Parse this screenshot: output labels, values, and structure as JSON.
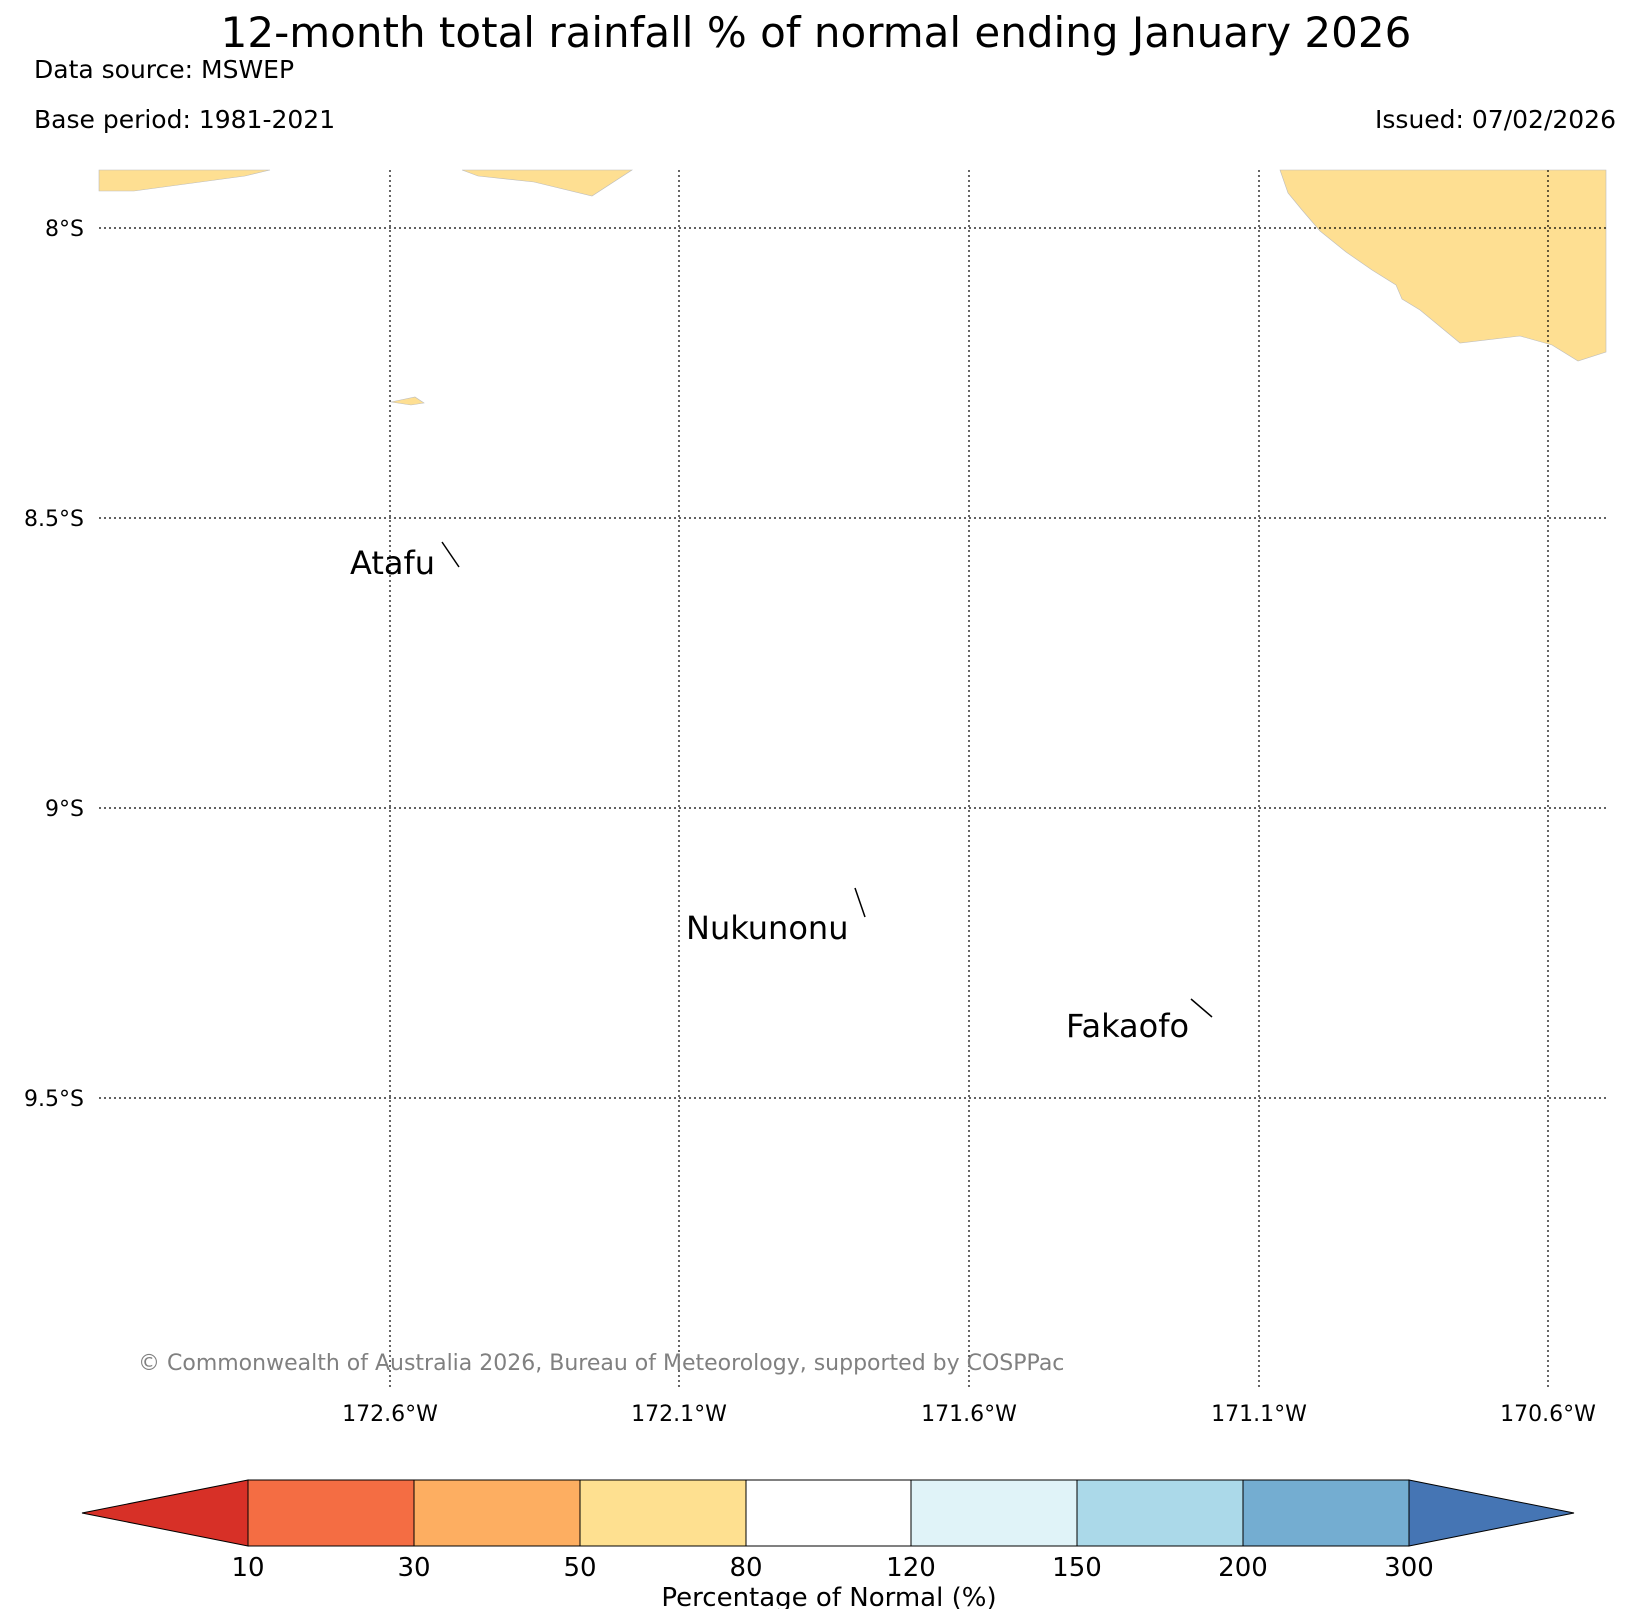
{
  "header": {
    "title": "12-month total rainfall % of normal ending January 2026",
    "data_source": "Data source: MSWEP",
    "base_period": "Base period: 1981-2021",
    "issued": "Issued: 07/02/2026"
  },
  "map": {
    "lat_labels": [
      "8°S",
      "8.5°S",
      "9°S",
      "9.5°S"
    ],
    "lon_labels": [
      "172.6°W",
      "172.1°W",
      "171.6°W",
      "171.1°W",
      "170.6°W"
    ],
    "places": [
      "Atafu",
      "Nukunonu",
      "Fakaofo"
    ],
    "copyright": "© Commonwealth of Australia 2026, Bureau of Meteorology, supported by COSPPac",
    "region_fill": "#fedf92",
    "region_category": "50-80 % of normal"
  },
  "legend": {
    "title": "Percentage of Normal (%)",
    "ticks": [
      "10",
      "30",
      "50",
      "80",
      "120",
      "150",
      "200",
      "300"
    ],
    "colors": [
      "#d73027",
      "#f46d43",
      "#fdae61",
      "#fee090",
      "#ffffff",
      "#e0f3f8",
      "#abd9e9",
      "#74add1",
      "#4575b4"
    ]
  }
}
